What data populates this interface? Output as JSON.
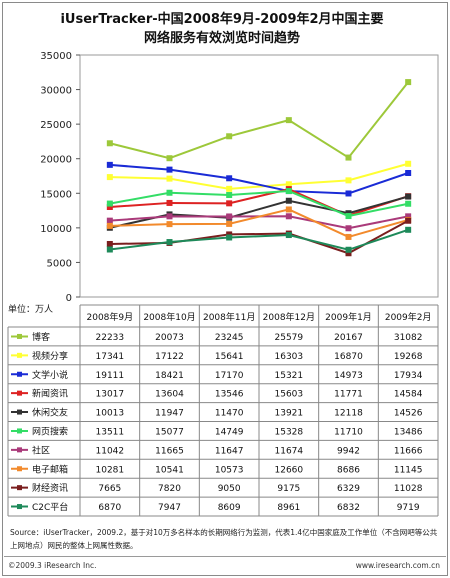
{
  "title_line1": "iUserTracker-中国2008年9月-2009年2月中国主要",
  "title_line2": "网络服务有效浏览时间趋势",
  "unit_label": "单位：万人",
  "source_text": "Source：iUserTracker，2009.2，基于对10万多名样本的长期网络行为监测，代表1.4亿中国家庭及工作单位（不含网吧等公共上网地点）网民的整体上网属性数据。",
  "footer_left": "©2009.3 iResearch Inc.",
  "footer_right": "www.iresearch.com.cn",
  "chart_data": {
    "type": "line",
    "title": "iUserTracker-中国2008年9月-2009年2月中国主要网络服务有效浏览时间趋势",
    "ylim": [
      0,
      35000
    ],
    "yticks": [
      0,
      5000,
      10000,
      15000,
      20000,
      25000,
      30000,
      35000
    ],
    "grid": false,
    "legend": "table-below",
    "categories": [
      "2008年9月",
      "2008年10月",
      "2008年11月",
      "2008年12月",
      "2009年1月",
      "2009年2月"
    ],
    "series": [
      {
        "name": "博客",
        "color": "#9dc83a",
        "marker": "square",
        "values": [
          22233,
          20073,
          23245,
          25579,
          20167,
          31082
        ]
      },
      {
        "name": "视频分享",
        "color": "#ffff33",
        "marker": "square",
        "values": [
          17341,
          17122,
          15641,
          16303,
          16870,
          19268
        ]
      },
      {
        "name": "文学小说",
        "color": "#1a2bd6",
        "marker": "square",
        "values": [
          19111,
          18421,
          17170,
          15321,
          14973,
          17934
        ]
      },
      {
        "name": "新闻资讯",
        "color": "#dd2222",
        "marker": "square",
        "values": [
          13017,
          13604,
          13546,
          15603,
          11771,
          14584
        ]
      },
      {
        "name": "休闲交友",
        "color": "#333333",
        "marker": "square",
        "values": [
          10013,
          11947,
          11470,
          13921,
          12118,
          14526
        ]
      },
      {
        "name": "网页搜索",
        "color": "#33dd66",
        "marker": "square",
        "values": [
          13511,
          15077,
          14749,
          15328,
          11710,
          13486
        ]
      },
      {
        "name": "社区",
        "color": "#aa3a7a",
        "marker": "square",
        "values": [
          11042,
          11665,
          11647,
          11674,
          9942,
          11666
        ]
      },
      {
        "name": "电子邮箱",
        "color": "#f28a2c",
        "marker": "square",
        "values": [
          10281,
          10541,
          10573,
          12660,
          8686,
          11145
        ]
      },
      {
        "name": "财经资讯",
        "color": "#7a1e1e",
        "marker": "square",
        "values": [
          7665,
          7820,
          9050,
          9175,
          6329,
          11028
        ]
      },
      {
        "name": "C2C平台",
        "color": "#1e8a5a",
        "marker": "square",
        "values": [
          6870,
          7947,
          8609,
          8961,
          6832,
          9719
        ]
      }
    ]
  }
}
